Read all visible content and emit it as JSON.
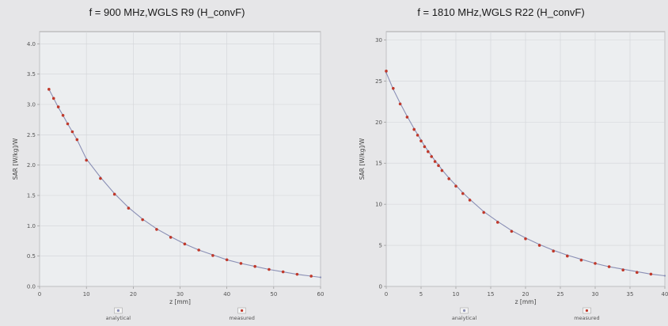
{
  "chart_data": [
    {
      "type": "scatter",
      "title": "f = 900 MHz,WGLS R9 (H_convF)",
      "xlabel": "z [mm]",
      "ylabel": "SAR [W/kg]/W",
      "xlim": [
        0,
        60
      ],
      "ylim": [
        0,
        4.2
      ],
      "xticks": [
        "0",
        "10",
        "20",
        "30",
        "40",
        "50",
        "60"
      ],
      "yticks": [
        "0.0",
        "0.5",
        "1.0",
        "1.5",
        "2.0",
        "2.5",
        "3.0",
        "3.5",
        "4.0"
      ],
      "grid": true,
      "legend_position": "bottom",
      "series": [
        {
          "name": "analytical",
          "color": "#8a8fb5",
          "x": [
            2,
            3,
            4,
            5,
            6,
            7,
            8,
            10,
            13,
            16,
            19,
            22,
            25,
            28,
            31,
            34,
            37,
            40,
            43,
            46,
            49,
            52,
            55,
            58,
            60
          ],
          "y": [
            3.25,
            3.1,
            2.95,
            2.82,
            2.68,
            2.55,
            2.42,
            2.1,
            1.8,
            1.53,
            1.3,
            1.11,
            0.95,
            0.82,
            0.7,
            0.6,
            0.52,
            0.44,
            0.38,
            0.33,
            0.28,
            0.24,
            0.2,
            0.17,
            0.15
          ]
        },
        {
          "name": "measured",
          "color": "#c0392b",
          "x": [
            2,
            3,
            4,
            5,
            6,
            7,
            8,
            10,
            13,
            16,
            19,
            22,
            25,
            28,
            31,
            34,
            37,
            40,
            43,
            46,
            49,
            52,
            55,
            58
          ],
          "y": [
            3.25,
            3.1,
            2.96,
            2.82,
            2.68,
            2.55,
            2.42,
            2.08,
            1.78,
            1.52,
            1.29,
            1.1,
            0.94,
            0.81,
            0.7,
            0.6,
            0.51,
            0.44,
            0.38,
            0.33,
            0.28,
            0.24,
            0.2,
            0.17
          ]
        }
      ]
    },
    {
      "type": "scatter",
      "title": "f = 1810 MHz,WGLS R22 (H_convF)",
      "xlabel": "z [mm]",
      "ylabel": "SAR [W/kg]/W",
      "xlim": [
        0,
        40
      ],
      "ylim": [
        0,
        31
      ],
      "xticks": [
        "0",
        "5",
        "10",
        "15",
        "20",
        "25",
        "30",
        "35",
        "40"
      ],
      "yticks": [
        "0",
        "5",
        "10",
        "15",
        "20",
        "25",
        "30"
      ],
      "grid": true,
      "legend_position": "bottom",
      "series": [
        {
          "name": "analytical",
          "color": "#8a8fb5",
          "x": [
            0,
            1,
            2,
            3,
            4,
            4.5,
            5,
            5.5,
            6,
            6.5,
            7,
            7.5,
            8,
            9,
            10,
            11,
            12,
            14,
            16,
            18,
            20,
            22,
            24,
            26,
            28,
            30,
            32,
            34,
            36,
            38,
            40
          ],
          "y": [
            26.0,
            24.0,
            22.3,
            20.7,
            19.2,
            18.5,
            17.8,
            17.1,
            16.5,
            15.9,
            15.3,
            14.8,
            14.2,
            13.2,
            12.3,
            11.4,
            10.6,
            9.1,
            7.9,
            6.8,
            5.9,
            5.1,
            4.4,
            3.8,
            3.3,
            2.8,
            2.4,
            2.1,
            1.8,
            1.5,
            1.3
          ]
        },
        {
          "name": "measured",
          "color": "#c0392b",
          "x": [
            0,
            1,
            2,
            3,
            4,
            4.5,
            5,
            5.5,
            6,
            6.5,
            7,
            7.5,
            8,
            9,
            10,
            11,
            12,
            14,
            16,
            18,
            20,
            22,
            24,
            26,
            28,
            30,
            32,
            34,
            36,
            38
          ],
          "y": [
            26.2,
            24.1,
            22.2,
            20.6,
            19.1,
            18.4,
            17.7,
            17.0,
            16.4,
            15.8,
            15.2,
            14.7,
            14.1,
            13.1,
            12.2,
            11.3,
            10.5,
            9.0,
            7.8,
            6.7,
            5.8,
            5.0,
            4.3,
            3.7,
            3.2,
            2.8,
            2.4,
            2.0,
            1.7,
            1.5
          ]
        }
      ]
    }
  ]
}
